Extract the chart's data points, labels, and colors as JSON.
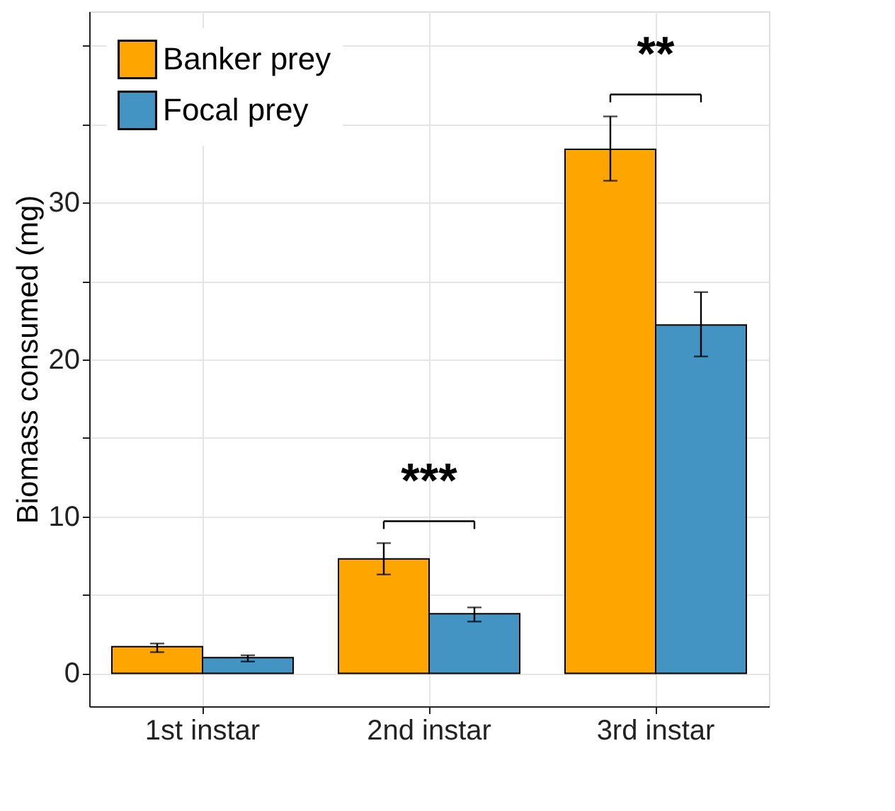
{
  "chart_data": {
    "type": "bar",
    "ylabel": "Biomass consumed (mg)",
    "categories": [
      "1st instar",
      "2nd instar",
      "3rd instar"
    ],
    "series": [
      {
        "name": "Banker prey",
        "color": "#ffa500",
        "values": [
          1.7,
          7.3,
          33.4
        ],
        "errors": [
          [
            1.35,
            1.9
          ],
          [
            6.3,
            8.3
          ],
          [
            31.4,
            35.5
          ]
        ]
      },
      {
        "name": "Focal prey",
        "color": "#4393c3",
        "values": [
          1.0,
          3.8,
          22.2
        ],
        "errors": [
          [
            0.75,
            1.15
          ],
          [
            3.3,
            4.2
          ],
          [
            20.2,
            24.3
          ]
        ]
      }
    ],
    "ylim": [
      -2.1,
      42.2
    ],
    "yticks": [
      0,
      {
        "value": 5,
        "label": null
      },
      10,
      {
        "value": 15,
        "label": null
      },
      20,
      {
        "value": 25,
        "label": null
      },
      30,
      {
        "value": 35,
        "label": null
      },
      {
        "value": 40,
        "label": null
      }
    ],
    "annotations": [
      "***",
      "**"
    ],
    "grid": true,
    "legend": "top left"
  }
}
